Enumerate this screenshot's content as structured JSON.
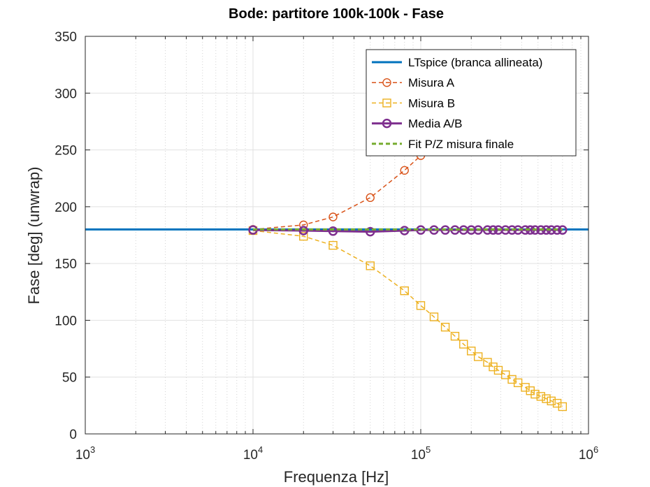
{
  "chart_data": {
    "type": "line",
    "title": "Bode: partitore 100k-100k - Fase",
    "xlabel": "Frequenza [Hz]",
    "ylabel": "Fase [deg] (unwrap)",
    "xscale": "log",
    "xlim": [
      1000,
      1000000
    ],
    "ylim": [
      0,
      350
    ],
    "yticks": [
      0,
      50,
      100,
      150,
      200,
      250,
      300,
      350
    ],
    "ytick_labels": [
      "0",
      "50",
      "100",
      "150",
      "200",
      "250",
      "300",
      "350"
    ],
    "xticks": [
      1000,
      10000,
      100000,
      1000000
    ],
    "xtick_labels": [
      {
        "base": "10",
        "exp": "3"
      },
      {
        "base": "10",
        "exp": "4"
      },
      {
        "base": "10",
        "exp": "5"
      },
      {
        "base": "10",
        "exp": "6"
      }
    ],
    "grid": true,
    "legend_position": "top-right",
    "series": [
      {
        "name": "LTspice (branca allineata)",
        "color": "#0072BD",
        "style": "solid",
        "marker": "none",
        "x": [
          1000,
          1000000
        ],
        "y": [
          180,
          180
        ]
      },
      {
        "name": "Misura A",
        "color": "#D95319",
        "style": "dashed",
        "marker": "circle",
        "x": [
          10000,
          20000,
          30000,
          50000,
          80000,
          100000,
          120000
        ],
        "y": [
          180,
          184,
          191,
          208,
          232,
          245,
          255
        ]
      },
      {
        "name": "Misura B",
        "color": "#EDB120",
        "style": "dashed",
        "marker": "square",
        "x": [
          10000,
          20000,
          30000,
          50000,
          80000,
          100000,
          120000,
          140000,
          160000,
          180000,
          200000,
          220000,
          250000,
          270000,
          290000,
          320000,
          350000,
          380000,
          420000,
          450000,
          480000,
          520000,
          560000,
          600000,
          650000,
          700000
        ],
        "y": [
          179,
          174,
          166,
          148,
          126,
          113,
          103,
          94,
          86,
          79,
          73,
          68,
          63,
          59,
          56,
          52,
          48,
          45,
          41,
          38,
          35,
          33,
          31,
          29,
          27,
          24
        ]
      },
      {
        "name": "Media A/B",
        "color": "#7E2F8E",
        "style": "solid",
        "marker": "circle",
        "x": [
          10000,
          20000,
          30000,
          50000,
          80000,
          100000,
          120000,
          140000,
          160000,
          180000,
          200000,
          220000,
          250000,
          270000,
          290000,
          320000,
          350000,
          380000,
          420000,
          450000,
          480000,
          520000,
          560000,
          600000,
          650000,
          700000
        ],
        "y": [
          179.5,
          179,
          178.5,
          178,
          179,
          179.5,
          179.5,
          179.5,
          179.5,
          179.5,
          179.5,
          179.5,
          179.5,
          179.5,
          179.5,
          179.5,
          179.5,
          179.5,
          179.5,
          179.5,
          179.5,
          179.5,
          179.5,
          179.5,
          179.5,
          179.5
        ]
      },
      {
        "name": "Fit P/Z misura finale",
        "color": "#77AC30",
        "style": "dashed",
        "marker": "none",
        "x": [
          10000,
          700000
        ],
        "y": [
          180,
          180
        ]
      }
    ]
  }
}
